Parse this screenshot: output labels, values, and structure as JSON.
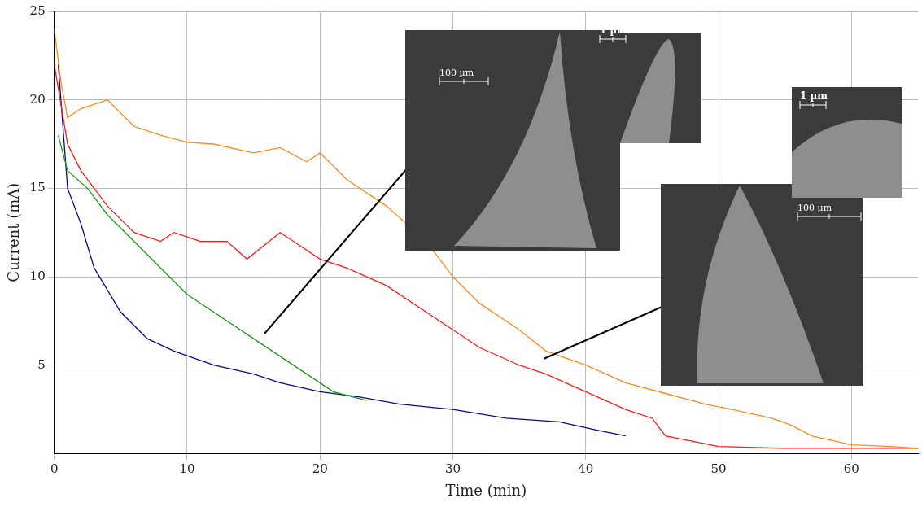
{
  "chart_data": {
    "type": "line",
    "x_label": "Time (min)",
    "y_label": "Current (mA)",
    "xlim": [
      0,
      65
    ],
    "xticks": [
      0,
      10,
      20,
      30,
      40,
      50,
      60
    ],
    "ylim": [
      0,
      25
    ],
    "yticks": [
      5,
      10,
      15,
      20,
      25
    ],
    "grid": true,
    "annotations": [
      "100 µm",
      "1 µm",
      "100 µm",
      "1 µm"
    ],
    "series": [
      {
        "color": "#ff8a1c",
        "x": [
          0,
          0.5,
          1,
          2,
          4,
          6,
          8,
          10,
          12,
          15,
          17,
          19,
          20,
          22,
          25,
          28,
          30,
          32,
          35,
          37,
          40,
          43,
          46,
          49,
          51,
          54,
          55.5,
          57,
          60,
          63,
          65
        ],
        "values": [
          24,
          21,
          19,
          19.5,
          20,
          18.5,
          18,
          17.6,
          17.5,
          17,
          17.3,
          16.5,
          17,
          15.5,
          14,
          12,
          10,
          8.5,
          7,
          5.8,
          5,
          4,
          3.4,
          2.8,
          2.5,
          2,
          1.6,
          1,
          0.5,
          0.4,
          0.3
        ]
      },
      {
        "color": "#ff1a1a",
        "x": [
          0,
          1,
          2,
          4,
          6,
          8,
          9,
          11,
          13,
          14.5,
          17,
          18,
          20,
          22,
          25,
          28,
          30,
          32,
          35,
          37,
          40,
          43,
          45,
          46,
          50,
          55,
          60,
          65
        ],
        "values": [
          22,
          17.5,
          16,
          14,
          12.5,
          12,
          12.5,
          12,
          12,
          11,
          12.5,
          12,
          11,
          10.5,
          9.5,
          8,
          7,
          6,
          5,
          4.5,
          3.5,
          2.5,
          2,
          1,
          0.4,
          0.3,
          0.3,
          0.3
        ]
      },
      {
        "color": "#1a9a1a",
        "x": [
          0.3,
          1,
          2.5,
          4,
          6,
          8,
          10,
          12,
          14,
          15,
          17,
          19,
          21,
          23.5
        ],
        "values": [
          18,
          16,
          15,
          13.5,
          12,
          10.5,
          9,
          8,
          7,
          6.5,
          5.5,
          4.5,
          3.5,
          3
        ]
      },
      {
        "color": "#0a0a8a",
        "x": [
          0.3,
          1,
          2,
          3,
          5,
          7,
          9,
          12,
          15,
          17,
          20,
          23,
          26,
          30,
          34,
          38,
          41,
          43
        ],
        "values": [
          22,
          15,
          13,
          10.5,
          8,
          6.5,
          5.8,
          5,
          4.5,
          4,
          3.5,
          3.2,
          2.8,
          2.5,
          2,
          1.8,
          1.3,
          1
        ]
      }
    ]
  }
}
